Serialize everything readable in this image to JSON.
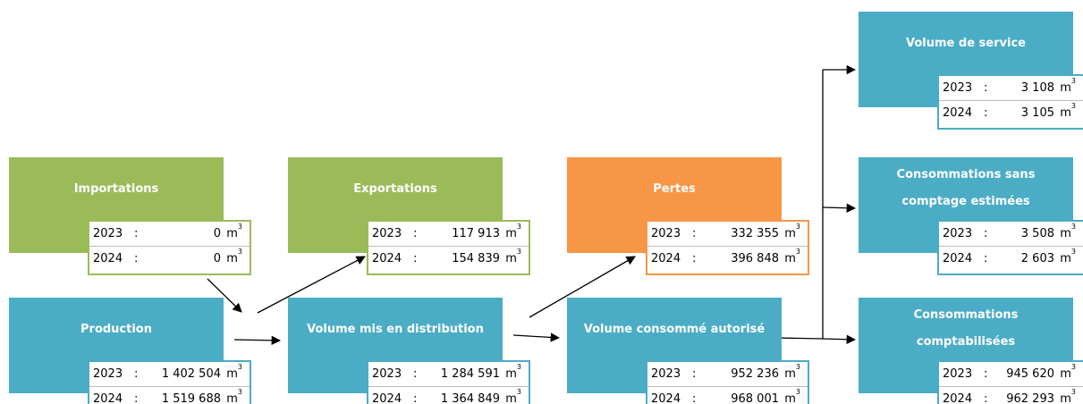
{
  "nodes": [
    {
      "title": [
        "Importations"
      ],
      "color": "#9bbb59",
      "rows": [
        [
          "2023",
          ":",
          "0",
          "m",
          "3"
        ],
        [
          "2024",
          ":",
          "0",
          "m",
          "3"
        ]
      ]
    },
    {
      "title": [
        "Exportations"
      ],
      "color": "#9bbb59",
      "rows": [
        [
          "2023",
          ":",
          "117 913",
          "m",
          "3"
        ],
        [
          "2024",
          ":",
          "154 839",
          "m",
          "3"
        ]
      ]
    },
    {
      "title": [
        "Pertes"
      ],
      "color": "#f79646",
      "rows": [
        [
          "2023",
          ":",
          "332 355",
          "m",
          "3"
        ],
        [
          "2024",
          ":",
          "396 848",
          "m",
          "3"
        ]
      ]
    },
    {
      "title": [
        "Production"
      ],
      "color": "#4bacc6",
      "rows": [
        [
          "2023",
          ":",
          "1 402 504",
          "m",
          "3"
        ],
        [
          "2024",
          ":",
          "1 519 688",
          "m",
          "3"
        ]
      ]
    },
    {
      "title": [
        "Volume mis en distribution"
      ],
      "color": "#4bacc6",
      "rows": [
        [
          "2023",
          ":",
          "1 284 591",
          "m",
          "3"
        ],
        [
          "2024",
          ":",
          "1 364 849",
          "m",
          "3"
        ]
      ]
    },
    {
      "title": [
        "Volume consommé autorisé"
      ],
      "color": "#4bacc6",
      "rows": [
        [
          "2023",
          ":",
          "952 236",
          "m",
          "3"
        ],
        [
          "2024",
          ":",
          "968 001",
          "m",
          "3"
        ]
      ]
    },
    {
      "title": [
        "Volume de service"
      ],
      "color": "#4bacc6",
      "rows": [
        [
          "2023",
          ":",
          "3 108",
          "m",
          "3"
        ],
        [
          "2024",
          ":",
          "3 105",
          "m",
          "3"
        ]
      ]
    },
    {
      "title": [
        "Consommations sans",
        "comptage estimées"
      ],
      "color": "#4bacc6",
      "rows": [
        [
          "2023",
          ":",
          "3 508",
          "m",
          "3"
        ],
        [
          "2024",
          ":",
          "2 603",
          "m",
          "3"
        ]
      ]
    },
    {
      "title": [
        "Consommations",
        "comptabilisées"
      ],
      "color": "#4bacc6",
      "rows": [
        [
          "2023",
          ":",
          "945 620",
          "m",
          "3"
        ],
        [
          "2024",
          ":",
          "962 293",
          "m",
          "3"
        ]
      ]
    }
  ]
}
